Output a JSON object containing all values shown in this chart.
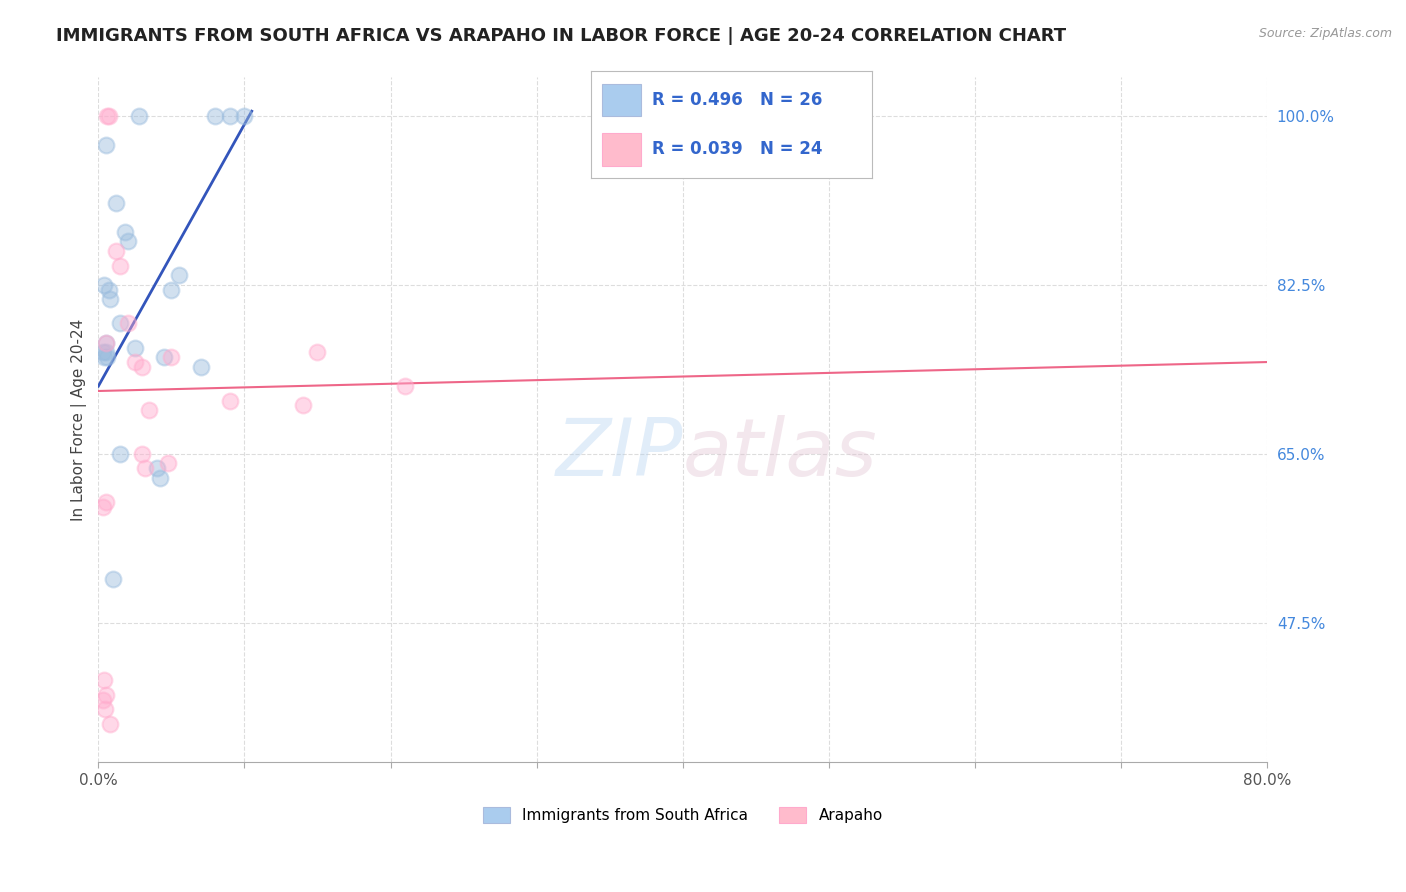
{
  "title": "IMMIGRANTS FROM SOUTH AFRICA VS ARAPAHO IN LABOR FORCE | AGE 20-24 CORRELATION CHART",
  "source": "Source: ZipAtlas.com",
  "ylabel": "In Labor Force | Age 20-24",
  "ylabel_right_ticks": [
    47.5,
    65.0,
    82.5,
    100.0
  ],
  "ylabel_right_labels": [
    "47.5%",
    "65.0%",
    "82.5%",
    "100.0%"
  ],
  "xmin": 0.0,
  "xmax": 80.0,
  "ymin": 33.0,
  "ymax": 104.0,
  "legend_blue_R": "R = 0.496",
  "legend_blue_N": "N = 26",
  "legend_pink_R": "R = 0.039",
  "legend_pink_N": "N = 24",
  "legend_blue_label": "Immigrants from South Africa",
  "legend_pink_label": "Arapaho",
  "blue_color": "#99BBDD",
  "pink_color": "#FFAACC",
  "blue_edge_color": "#99BBDD",
  "pink_edge_color": "#FFAACC",
  "blue_line_color": "#3355BB",
  "pink_line_color": "#EE6688",
  "blue_legend_color": "#AACCEE",
  "pink_legend_color": "#FFBBCC",
  "watermark_zip": "ZIP",
  "watermark_atlas": "atlas",
  "blue_scatter_x": [
    0.5,
    1.2,
    1.8,
    2.0,
    0.3,
    0.4,
    0.4,
    0.5,
    0.5,
    0.6,
    0.7,
    0.8,
    1.5,
    1.5,
    2.5,
    4.0,
    4.2,
    4.5,
    5.0,
    5.5,
    7.0,
    8.0,
    9.0,
    10.0,
    1.0,
    2.8
  ],
  "blue_scatter_y": [
    97.0,
    91.0,
    88.0,
    87.0,
    75.5,
    82.5,
    75.0,
    76.5,
    75.5,
    75.0,
    82.0,
    81.0,
    78.5,
    65.0,
    76.0,
    63.5,
    62.5,
    75.0,
    82.0,
    83.5,
    74.0,
    100.0,
    100.0,
    100.0,
    52.0,
    100.0
  ],
  "pink_scatter_x": [
    0.3,
    0.5,
    1.2,
    1.5,
    2.0,
    2.5,
    3.0,
    3.0,
    3.5,
    5.0,
    9.0,
    14.0,
    15.0,
    21.0,
    0.4,
    0.5,
    0.6,
    0.7,
    4.8,
    0.35,
    0.45,
    0.55,
    3.2,
    0.8
  ],
  "pink_scatter_y": [
    59.5,
    60.0,
    86.0,
    84.5,
    78.5,
    74.5,
    74.0,
    65.0,
    69.5,
    75.0,
    70.5,
    70.0,
    75.5,
    72.0,
    41.5,
    40.0,
    100.0,
    100.0,
    64.0,
    39.5,
    38.5,
    76.5,
    63.5,
    37.0
  ],
  "blue_trend_x": [
    0.0,
    10.5
  ],
  "blue_trend_y": [
    72.0,
    100.5
  ],
  "pink_trend_x": [
    0.0,
    80.0
  ],
  "pink_trend_y": [
    71.5,
    74.5
  ],
  "grid_color": "#DDDDDD",
  "background_color": "#FFFFFF",
  "title_fontsize": 13,
  "axis_label_fontsize": 11,
  "tick_fontsize": 11,
  "legend_fontsize": 13,
  "scatter_size": 130,
  "scatter_alpha": 0.45,
  "scatter_linewidth": 1.5
}
